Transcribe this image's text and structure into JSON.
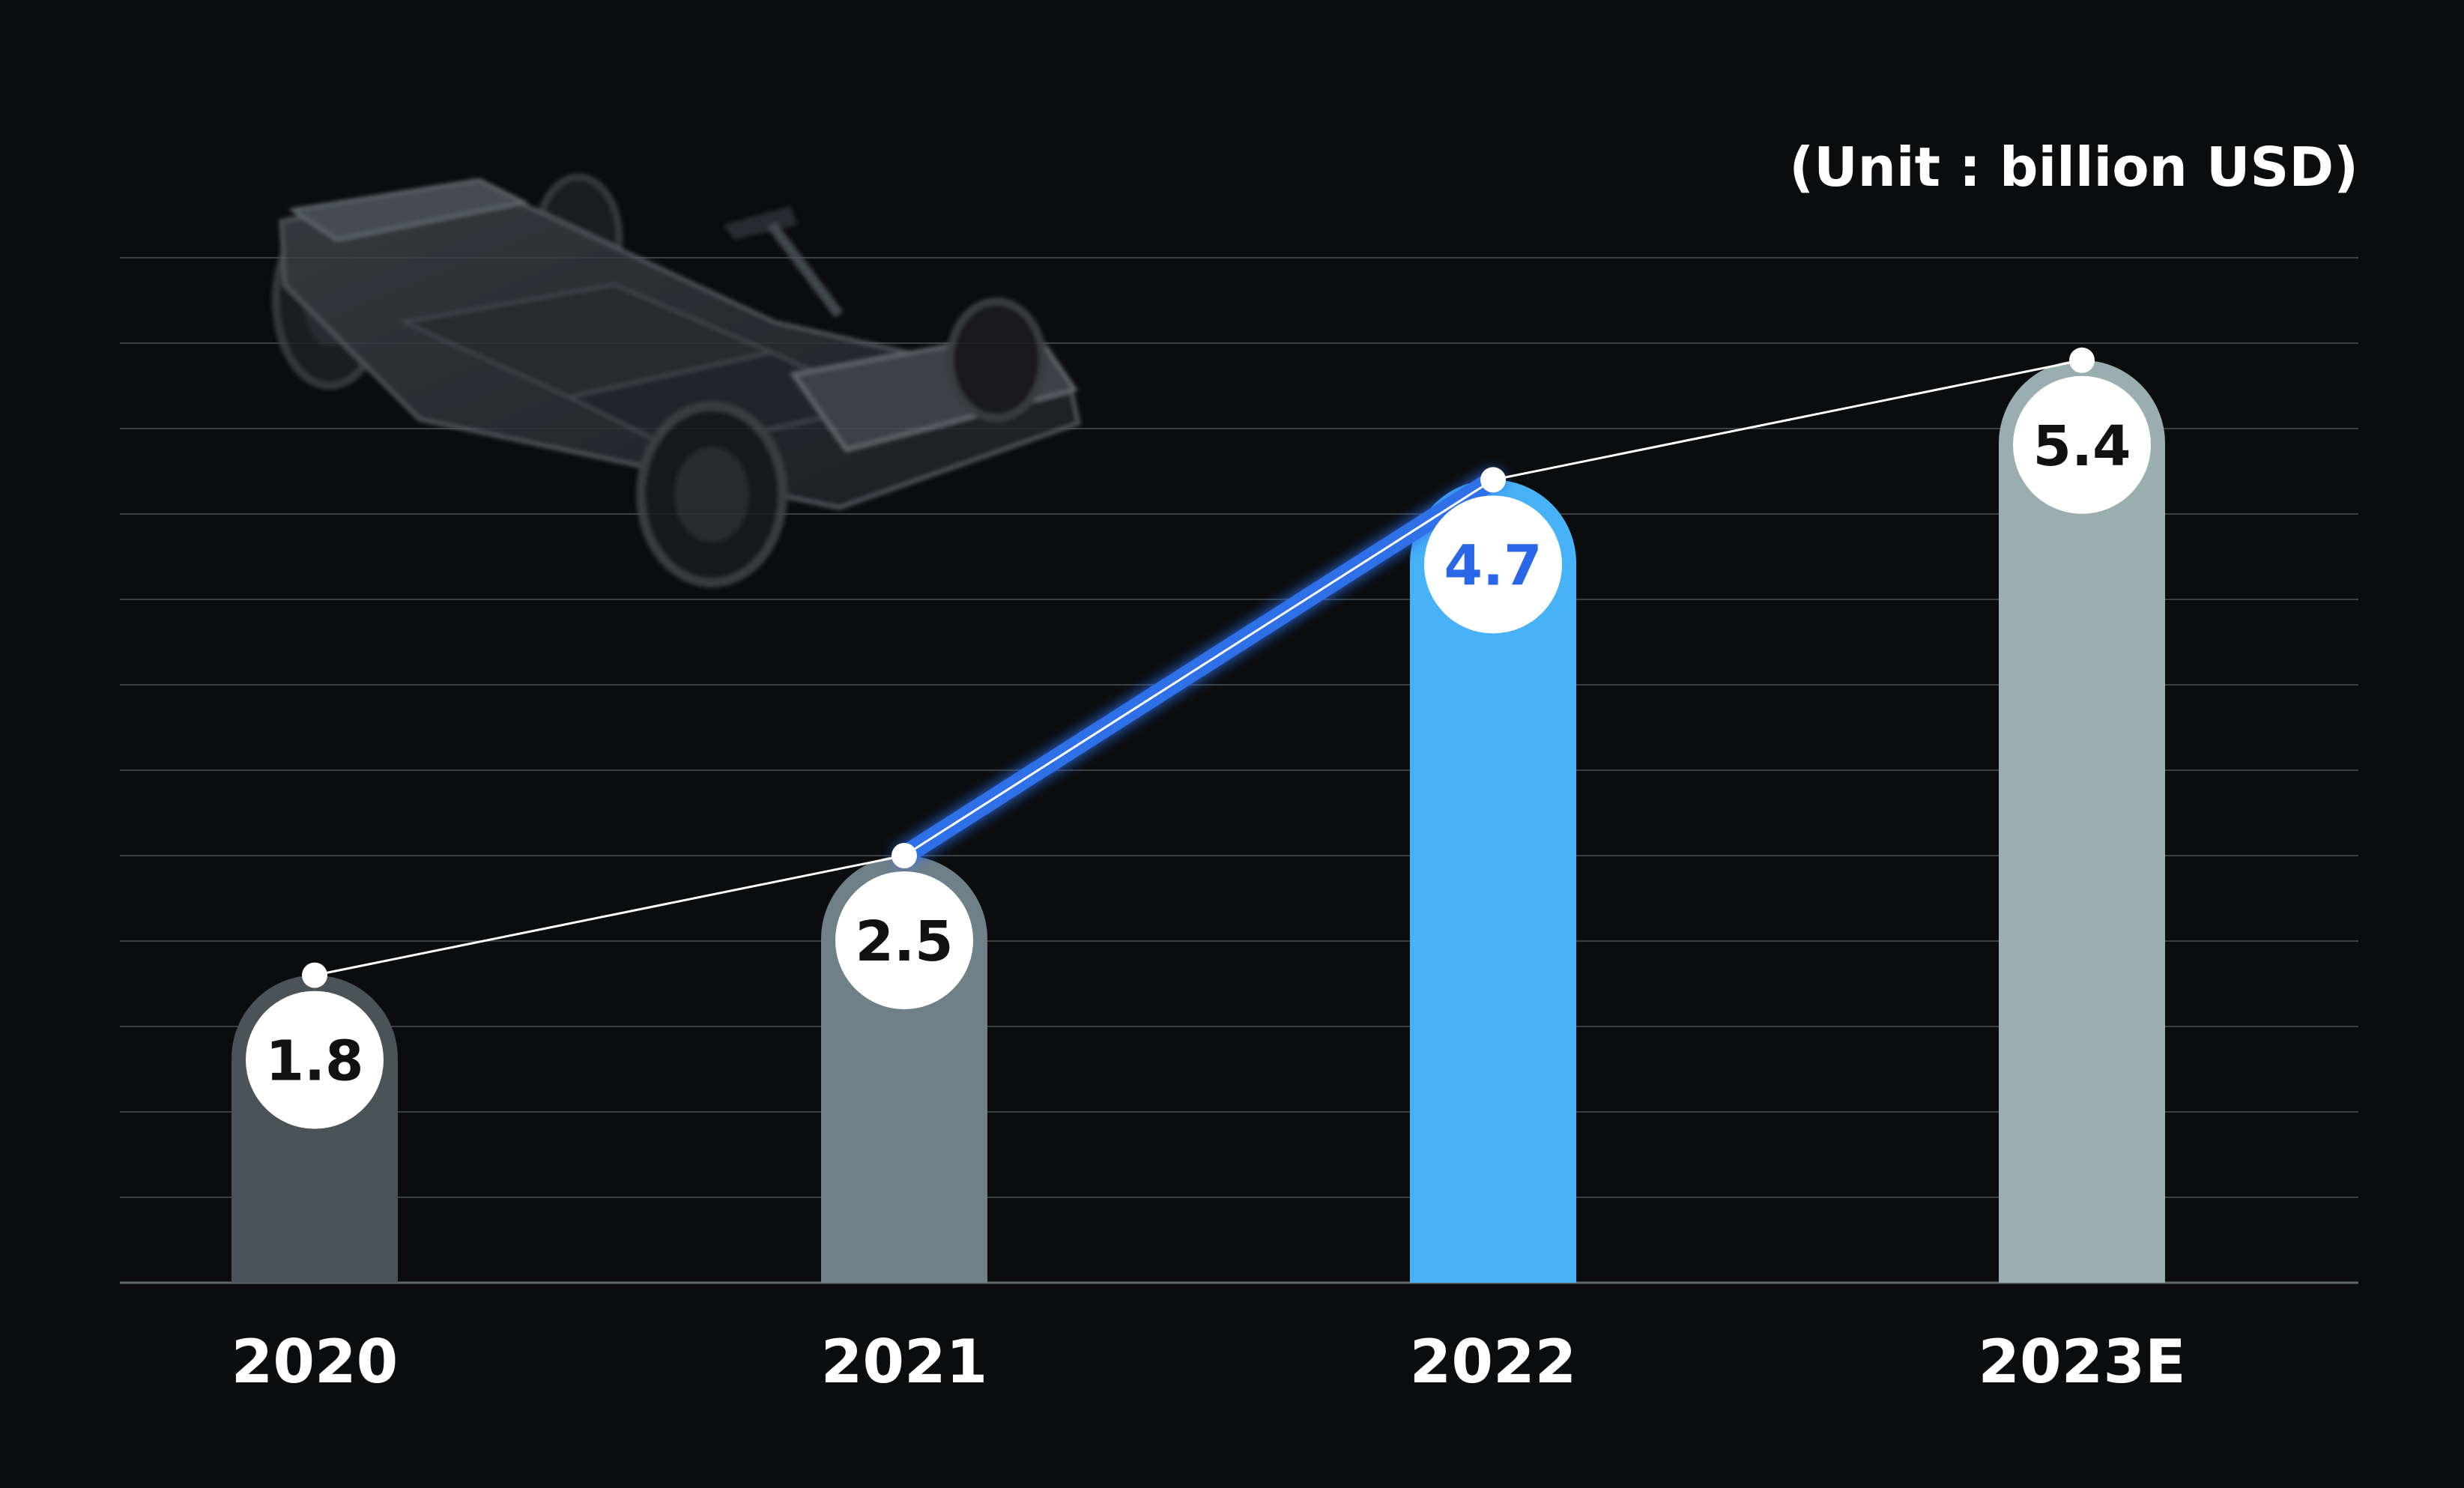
{
  "unit_label": "(Unit : billion USD)",
  "chart_data": {
    "type": "bar",
    "categories": [
      "2020",
      "2021",
      "2022",
      "2023E"
    ],
    "values": [
      1.8,
      2.5,
      4.7,
      5.4
    ],
    "title": "",
    "xlabel": "",
    "ylabel": "",
    "ylim": [
      0,
      6
    ],
    "grid": true,
    "trend_line": true,
    "highlight_index": 2,
    "colors": {
      "background": "#0a0c0d",
      "grid": "#3a4144",
      "bars": [
        "#4a5357",
        "#6f8088",
        "#47b2f7",
        "#9aaeb2"
      ],
      "highlight_label": "#2a66e8",
      "highlight_segment": "#2f6fe8",
      "label_text": "#111111",
      "line": "#ffffff"
    },
    "illustration": "ev-skateboard-chassis"
  }
}
